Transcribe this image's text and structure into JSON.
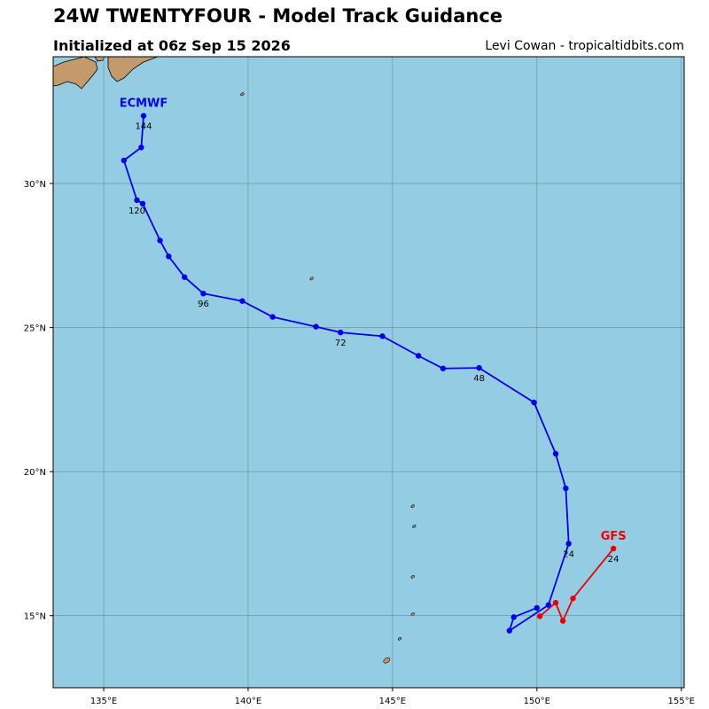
{
  "header": {
    "title": "24W TWENTYFOUR - Model Track Guidance",
    "subtitle": "Initialized at 06z Sep 15 2026",
    "credit": "Levi Cowan - tropicaltidbits.com"
  },
  "map": {
    "ocean_color": "#94cde3",
    "land_color": "#c49a6c",
    "lon_range": [
      133.25,
      155.1
    ],
    "lat_range": [
      12.5,
      34.4
    ],
    "lon_ticks": [
      {
        "value": 135,
        "label": "135°E"
      },
      {
        "value": 140,
        "label": "140°E"
      },
      {
        "value": 145,
        "label": "145°E"
      },
      {
        "value": 150,
        "label": "150°E"
      },
      {
        "value": 155,
        "label": "155°E"
      }
    ],
    "lat_ticks": [
      {
        "value": 15,
        "label": "15°N"
      },
      {
        "value": 20,
        "label": "20°N"
      },
      {
        "value": 25,
        "label": "25°N"
      },
      {
        "value": 30,
        "label": "30°N"
      }
    ],
    "grid": true
  },
  "chart_data": {
    "type": "map-tracks",
    "series": [
      {
        "name": "ECMWF",
        "color": "#0000ee",
        "points": [
          {
            "lon": 150.0,
            "lat": 15.27
          },
          {
            "lon": 149.2,
            "lat": 14.95
          },
          {
            "lon": 149.05,
            "lat": 14.48
          },
          {
            "lon": 150.4,
            "lat": 15.37
          },
          {
            "lon": 151.1,
            "lat": 17.5
          },
          {
            "lon": 151.0,
            "lat": 19.42
          },
          {
            "lon": 150.65,
            "lat": 20.62
          },
          {
            "lon": 149.9,
            "lat": 22.4
          },
          {
            "lon": 148.0,
            "lat": 23.6
          },
          {
            "lon": 146.75,
            "lat": 23.58
          },
          {
            "lon": 145.9,
            "lat": 24.02
          },
          {
            "lon": 144.65,
            "lat": 24.7
          },
          {
            "lon": 143.2,
            "lat": 24.83
          },
          {
            "lon": 142.35,
            "lat": 25.03
          },
          {
            "lon": 140.85,
            "lat": 25.37
          },
          {
            "lon": 139.8,
            "lat": 25.92
          },
          {
            "lon": 138.45,
            "lat": 26.18
          },
          {
            "lon": 137.8,
            "lat": 26.75
          },
          {
            "lon": 137.25,
            "lat": 27.47
          },
          {
            "lon": 136.95,
            "lat": 28.02
          },
          {
            "lon": 136.35,
            "lat": 29.3
          },
          {
            "lon": 136.15,
            "lat": 29.42
          },
          {
            "lon": 135.7,
            "lat": 30.8
          },
          {
            "lon": 136.3,
            "lat": 31.25
          },
          {
            "lon": 136.38,
            "lat": 32.35
          }
        ],
        "hour_labels": [
          {
            "label": "24",
            "lon": 151.1,
            "lat": 17.5
          },
          {
            "label": "48",
            "lon": 148.0,
            "lat": 23.6
          },
          {
            "label": "72",
            "lon": 143.2,
            "lat": 24.83
          },
          {
            "label": "96",
            "lon": 138.45,
            "lat": 26.18
          },
          {
            "label": "120",
            "lon": 136.15,
            "lat": 29.42
          },
          {
            "label": "144",
            "lon": 136.38,
            "lat": 32.35
          }
        ],
        "name_anchor": {
          "lon": 136.38,
          "lat": 32.35
        }
      },
      {
        "name": "GFS",
        "color": "#ee0000",
        "points": [
          {
            "lon": 150.1,
            "lat": 14.98
          },
          {
            "lon": 150.65,
            "lat": 15.45
          },
          {
            "lon": 150.9,
            "lat": 14.82
          },
          {
            "lon": 151.25,
            "lat": 15.6
          },
          {
            "lon": 152.65,
            "lat": 17.33
          }
        ],
        "hour_labels": [
          {
            "label": "24",
            "lon": 152.65,
            "lat": 17.33
          }
        ],
        "name_anchor": {
          "lon": 152.65,
          "lat": 17.33
        }
      }
    ]
  },
  "islands": [
    {
      "name": "small-island-1",
      "lon": 139.8,
      "lat": 33.1
    },
    {
      "name": "small-island-2",
      "lon": 142.2,
      "lat": 26.7
    },
    {
      "name": "small-island-3",
      "lon": 145.7,
      "lat": 18.8
    },
    {
      "name": "small-island-4",
      "lon": 145.75,
      "lat": 18.1
    },
    {
      "name": "small-island-5",
      "lon": 145.7,
      "lat": 16.35
    },
    {
      "name": "small-island-6",
      "lon": 145.7,
      "lat": 15.05
    },
    {
      "name": "small-island-7",
      "lon": 145.25,
      "lat": 14.2
    },
    {
      "name": "guam",
      "lon": 144.8,
      "lat": 13.45
    }
  ]
}
